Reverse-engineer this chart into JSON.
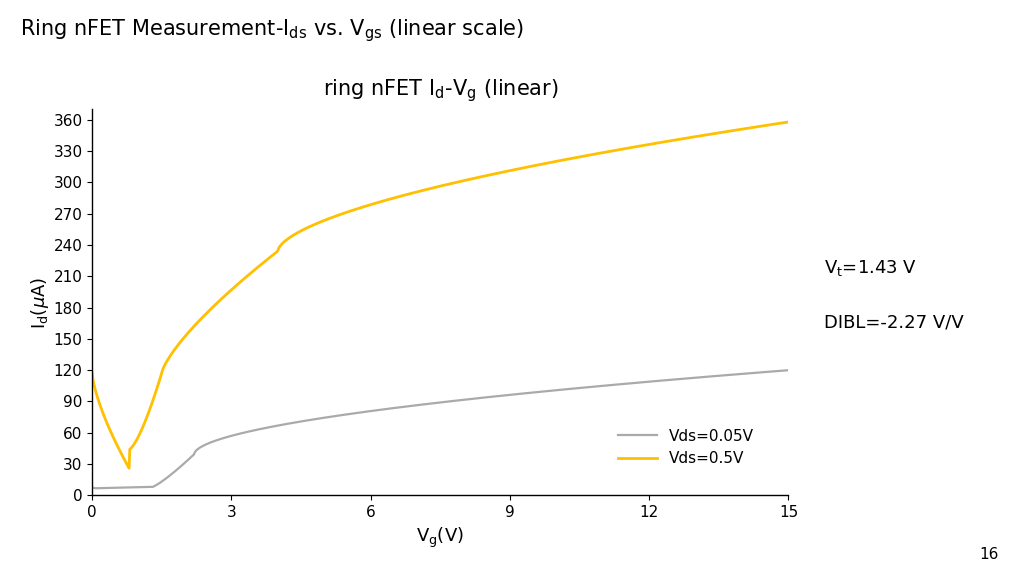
{
  "xlim": [
    0,
    15
  ],
  "ylim": [
    0,
    370
  ],
  "yticks": [
    0,
    30,
    60,
    90,
    120,
    150,
    180,
    210,
    240,
    270,
    300,
    330,
    360
  ],
  "xticks": [
    0,
    3,
    6,
    9,
    12,
    15
  ],
  "color_gray": "#aaaaaa",
  "color_gold": "#FFC000",
  "background": "#ffffff",
  "page_number": "16",
  "annotation_vt": "Vt=1.43 V",
  "annotation_dibl": "DIBL=-2.27 V/V",
  "legend_gray": "Vds=0.05V",
  "legend_gold": "Vds=0.5V"
}
